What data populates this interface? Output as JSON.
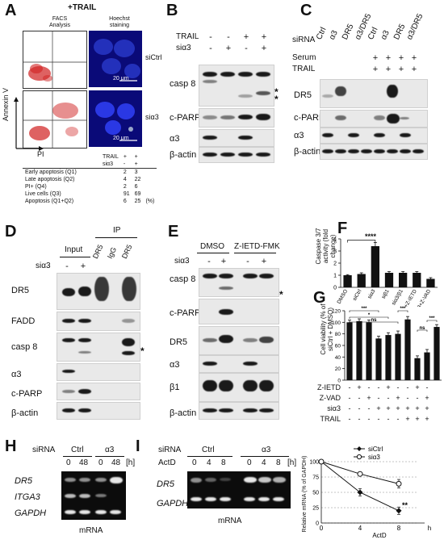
{
  "panels": {
    "A": "A",
    "B": "B",
    "C": "C",
    "D": "D",
    "E": "E",
    "F": "F",
    "G": "G",
    "H": "H",
    "I": "I"
  },
  "A": {
    "title": "+TRAIL",
    "col1": "FACS\nAnalysis",
    "col2": "Hoechst\nstaining",
    "row1": "siCtrl",
    "row2": "siα3",
    "ylabel": "Annexin V",
    "xlabel": "PI",
    "scalebar": "20 μm",
    "quads": [
      "Q1",
      "Q2",
      "Q3",
      "Q4"
    ],
    "table": {
      "hdr": [
        [
          "TRAIL",
          "+",
          "+"
        ],
        [
          "siα3",
          "-",
          "+"
        ]
      ],
      "rows": [
        [
          "Early apoptosis (Q1)",
          "2",
          "3"
        ],
        [
          "Late apoptosis (Q2)",
          "4",
          "22"
        ],
        [
          "PI+ (Q4)",
          "2",
          "6"
        ],
        [
          "Live cells (Q3)",
          "91",
          "69"
        ],
        [
          "Apoptosis (Q1+Q2)",
          "6",
          "25"
        ]
      ],
      "unit": "(%)"
    }
  },
  "B": {
    "cond": [
      [
        "TRAIL",
        "-",
        "-",
        "+",
        "+"
      ],
      [
        "siα3",
        "-",
        "+",
        "-",
        "+"
      ]
    ],
    "rows": [
      "casp 8",
      "c-PARP",
      "α3",
      "β-actin"
    ],
    "stars": "*\n*"
  },
  "C": {
    "siRNA_label": "siRNA",
    "lanes": [
      "Ctrl",
      "α3",
      "DR5",
      "α3/DR5",
      "Ctrl",
      "α3",
      "DR5",
      "α3/DR5"
    ],
    "cond": [
      [
        "Serum",
        "-",
        "-",
        "-",
        "-",
        "+",
        "+",
        "+",
        "+"
      ],
      [
        "TRAIL",
        "-",
        "-",
        "-",
        "-",
        "+",
        "+",
        "+",
        "+"
      ]
    ],
    "rows": [
      "DR5",
      "c-PARP",
      "α3",
      "β-actin"
    ]
  },
  "D": {
    "input": "Input",
    "ip": "IP",
    "lanes": [
      "DR5",
      "IgG",
      "DR5"
    ],
    "cond": [
      "siα3",
      "-",
      "+"
    ],
    "rows": [
      "DR5",
      "FADD",
      "casp 8",
      "α3",
      "c-PARP",
      "β-actin"
    ],
    "star": "*"
  },
  "E": {
    "groups": [
      "DMSO",
      "Z-IETD-FMK"
    ],
    "cond": [
      "siα3",
      "-",
      "+",
      "-",
      "+"
    ],
    "rows": [
      "casp 8",
      "c-PARP",
      "DR5",
      "α3",
      "β1",
      "β-actin"
    ],
    "star": "*"
  },
  "F": {
    "ylabel": "Caspase 3/7 activity (fold change)",
    "sig": "****",
    "chart_data": {
      "type": "bar",
      "categories": [
        "DMSO",
        "siCtrl",
        "siα3",
        "siβ1",
        "siα3/β1",
        "siα3+Z-IETD",
        "siα3+Z-VAD"
      ],
      "values": [
        1.0,
        1.1,
        3.4,
        1.2,
        1.2,
        1.2,
        0.7
      ],
      "errors": [
        0.05,
        0.1,
        0.3,
        0.1,
        0.1,
        0.1,
        0.1
      ],
      "ylim": [
        0,
        4
      ],
      "yticks": [
        "0",
        "1",
        "2",
        "3",
        "4"
      ]
    }
  },
  "G": {
    "ylabel": "Cell viability (% of siCtrl + DMSO)",
    "cond_rows": [
      [
        "Z-IETD",
        "-",
        "+",
        "-",
        "-",
        "+",
        "-",
        "-",
        "+",
        "-"
      ],
      [
        "Z-VAD",
        "-",
        "-",
        "+",
        "-",
        "-",
        "+",
        "-",
        "-",
        "+"
      ],
      [
        "siα3",
        "-",
        "-",
        "-",
        "+",
        "+",
        "+",
        "+",
        "+",
        "+"
      ],
      [
        "TRAIL",
        "-",
        "-",
        "-",
        "-",
        "-",
        "-",
        "+",
        "+",
        "+"
      ]
    ],
    "sig": [
      "***",
      "*",
      "ns",
      "***",
      "ns",
      "***"
    ],
    "chart_data": {
      "type": "bar",
      "values": [
        100,
        102,
        100,
        72,
        78,
        80,
        105,
        38,
        48,
        92
      ],
      "errors": [
        4,
        4,
        4,
        4,
        4,
        5,
        5,
        4,
        5,
        4
      ],
      "ylim": [
        0,
        120
      ],
      "yticks": [
        "0",
        "20",
        "40",
        "60",
        "80",
        "100",
        "120"
      ]
    }
  },
  "H": {
    "siRNA": "siRNA",
    "groups": [
      "Ctrl",
      "α3"
    ],
    "times": [
      "0",
      "48",
      "0",
      "48"
    ],
    "unit": "[h]",
    "rows": [
      "DR5",
      "ITGA3",
      "GAPDH"
    ],
    "footer": "mRNA"
  },
  "I": {
    "siRNA": "siRNA",
    "groups": [
      "Ctrl",
      "α3"
    ],
    "actd": "ActD",
    "times": [
      "0",
      "4",
      "8",
      "0",
      "4",
      "8"
    ],
    "unit": "[h]",
    "rows": [
      "DR5",
      "GAPDH"
    ],
    "footer": "mRNA",
    "chart": {
      "ylabel": "Relative mRNA (% of GAPDH)",
      "xlabel": "ActD",
      "xunit": "h",
      "sig": "**",
      "chart_data": {
        "type": "line",
        "x": [
          0,
          4,
          8
        ],
        "xticks": [
          "0",
          "4",
          "8"
        ],
        "yticks": [
          "0",
          "25",
          "50",
          "75",
          "100"
        ],
        "ylim": [
          0,
          100
        ],
        "series": [
          {
            "name": "siCtrl",
            "values": [
              100,
              50,
              20
            ],
            "errors": [
              0,
              6,
              6
            ]
          },
          {
            "name": "siα3",
            "values": [
              100,
              80,
              64
            ],
            "errors": [
              0,
              3,
              7
            ]
          }
        ]
      }
    }
  }
}
